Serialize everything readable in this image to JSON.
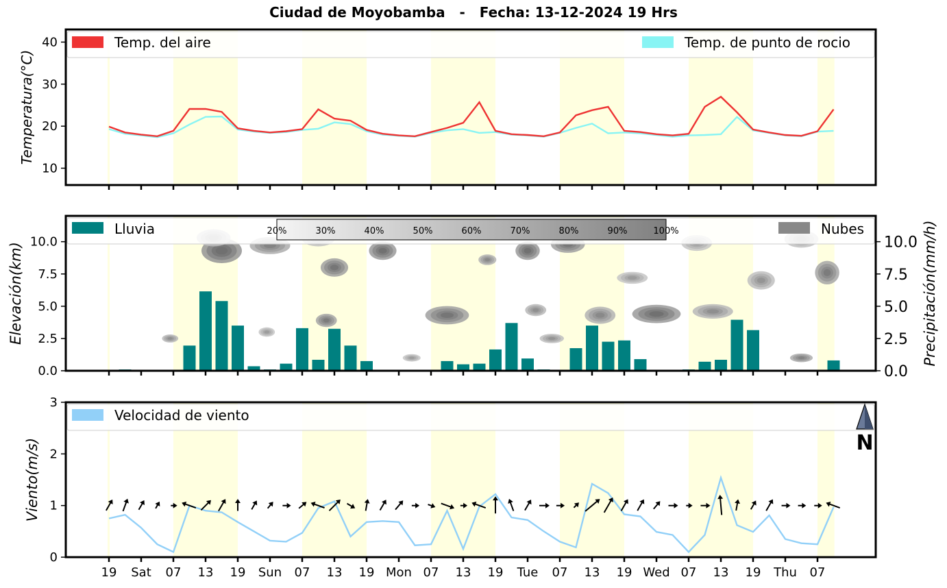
{
  "title": "Ciudad de Moyobamba   -   Fecha: 13-12-2024 19 Hrs",
  "colors": {
    "temp_air": "#ee3333",
    "temp_dew": "#88f4f4",
    "rain": "#008080",
    "clouds": "#888888",
    "wind_speed": "#92d0f8",
    "day_shade": "#ffffe0",
    "arrows": "#000000"
  },
  "x_ticks": [
    "19",
    "Sat",
    "07",
    "13",
    "19",
    "Sun",
    "07",
    "13",
    "19",
    "Mon",
    "07",
    "13",
    "19",
    "Tue",
    "07",
    "13",
    "19",
    "Wed",
    "07",
    "13",
    "19",
    "Thu",
    "07"
  ],
  "chart_data": [
    {
      "type": "line",
      "ylabel": "Temperatura(°C)",
      "ylim": [
        6,
        43
      ],
      "yticks": [
        "10",
        "20",
        "30",
        "40"
      ],
      "ytick_values": [
        10,
        20,
        30,
        40
      ],
      "legend_placement": "top",
      "series": [
        {
          "name": "Temp. del aire",
          "values": [
            19.9,
            18.5,
            18.0,
            17.6,
            18.9,
            24.1,
            24.1,
            23.4,
            19.5,
            18.9,
            18.5,
            18.8,
            19.3,
            24.0,
            21.8,
            21.3,
            19.1,
            18.2,
            17.8,
            17.6,
            18.6,
            19.6,
            20.8,
            25.7,
            18.9,
            18.1,
            17.9,
            17.6,
            18.5,
            22.6,
            23.8,
            24.6,
            18.9,
            18.6,
            18.1,
            17.8,
            18.2,
            24.6,
            27.0,
            23.3,
            19.2,
            18.5,
            17.9,
            17.7,
            18.8,
            24.0
          ]
        },
        {
          "name": "Temp. de punto de rocio",
          "values": [
            19.3,
            18.2,
            17.8,
            17.4,
            18.3,
            20.4,
            22.2,
            22.3,
            19.2,
            18.7,
            18.4,
            18.6,
            19.1,
            19.4,
            20.9,
            20.5,
            18.8,
            18.0,
            17.7,
            17.5,
            18.4,
            19.0,
            19.3,
            18.4,
            18.6,
            18.0,
            17.8,
            17.5,
            18.4,
            19.6,
            20.6,
            18.3,
            18.5,
            18.3,
            17.9,
            17.5,
            17.8,
            17.9,
            18.1,
            22.2,
            19.0,
            18.4,
            17.8,
            17.6,
            18.7,
            18.9
          ]
        }
      ]
    },
    {
      "type": "bar",
      "ylabel": "Elevación(km)",
      "ylabel_right": "Precipitación(mm/h)",
      "ylim": [
        0,
        12
      ],
      "yticks": [
        "0.0",
        "2.5",
        "5.0",
        "7.5",
        "10.0"
      ],
      "ytick_values": [
        0,
        2.5,
        5,
        7.5,
        10
      ],
      "series": [
        {
          "name": "Lluvia",
          "values": [
            0,
            0.1,
            0,
            0,
            0,
            1.95,
            6.15,
            5.4,
            3.5,
            0.35,
            0.1,
            0.55,
            3.3,
            0.85,
            3.25,
            1.95,
            0.75,
            0,
            0,
            0.03,
            0.03,
            0.75,
            0.5,
            0.55,
            1.65,
            3.7,
            0.95,
            0.1,
            0,
            1.75,
            3.5,
            2.25,
            2.35,
            0.9,
            0,
            0.05,
            0.1,
            0.7,
            0.85,
            3.95,
            3.15,
            0,
            0,
            0,
            0,
            0.8
          ]
        },
        {
          "name": "Nubes",
          "values": []
        }
      ],
      "cloud_scale": [
        "20%",
        "30%",
        "40%",
        "50%",
        "60%",
        "70%",
        "80%",
        "90%",
        "100%"
      ],
      "cloud_patches": [
        {
          "x": 7,
          "y": 9.3,
          "w": 2.0,
          "h": 1.5,
          "level": 0.7
        },
        {
          "x": 6.5,
          "y": 10.3,
          "w": 1.6,
          "h": 0.9,
          "level": 0.35
        },
        {
          "x": 10,
          "y": 9.7,
          "w": 2.0,
          "h": 0.9,
          "level": 0.5
        },
        {
          "x": 14,
          "y": 8.0,
          "w": 1.2,
          "h": 1.0,
          "level": 0.6
        },
        {
          "x": 13,
          "y": 10.2,
          "w": 1.5,
          "h": 0.7,
          "level": 0.35
        },
        {
          "x": 17,
          "y": 9.3,
          "w": 1.2,
          "h": 1.0,
          "level": 0.65
        },
        {
          "x": 26,
          "y": 9.3,
          "w": 1.0,
          "h": 1.0,
          "level": 0.65
        },
        {
          "x": 28.5,
          "y": 9.8,
          "w": 1.6,
          "h": 0.9,
          "level": 0.6
        },
        {
          "x": 23.5,
          "y": 8.6,
          "w": 0.6,
          "h": 0.4,
          "level": 0.45
        },
        {
          "x": 21,
          "y": 4.3,
          "w": 2.2,
          "h": 1.0,
          "level": 0.6
        },
        {
          "x": 13.5,
          "y": 3.9,
          "w": 0.8,
          "h": 0.6,
          "level": 0.55
        },
        {
          "x": 26.5,
          "y": 4.7,
          "w": 0.8,
          "h": 0.5,
          "level": 0.4
        },
        {
          "x": 27.5,
          "y": 2.5,
          "w": 1.0,
          "h": 0.3,
          "level": 0.35
        },
        {
          "x": 30.5,
          "y": 4.3,
          "w": 1.4,
          "h": 0.9,
          "level": 0.45
        },
        {
          "x": 34,
          "y": 4.4,
          "w": 2.5,
          "h": 1.0,
          "level": 0.65
        },
        {
          "x": 37.5,
          "y": 4.6,
          "w": 2.0,
          "h": 0.7,
          "level": 0.4
        },
        {
          "x": 32.5,
          "y": 7.2,
          "w": 1.4,
          "h": 0.5,
          "level": 0.3
        },
        {
          "x": 40.5,
          "y": 7.0,
          "w": 1.2,
          "h": 1.0,
          "level": 0.35
        },
        {
          "x": 43,
          "y": 10.2,
          "w": 1.6,
          "h": 0.9,
          "level": 0.35
        },
        {
          "x": 44.6,
          "y": 7.6,
          "w": 1.0,
          "h": 1.4,
          "level": 0.55
        },
        {
          "x": 3.8,
          "y": 2.5,
          "w": 0.5,
          "h": 0.2,
          "level": 0.4
        },
        {
          "x": 9.8,
          "y": 3.0,
          "w": 0.5,
          "h": 0.3,
          "level": 0.3
        },
        {
          "x": 18.8,
          "y": 1.0,
          "w": 0.6,
          "h": 0.15,
          "level": 0.3
        },
        {
          "x": 43,
          "y": 1.0,
          "w": 0.9,
          "h": 0.25,
          "level": 0.5
        },
        {
          "x": 36.5,
          "y": 9.9,
          "w": 1.4,
          "h": 0.8,
          "level": 0.3
        }
      ]
    },
    {
      "type": "line",
      "ylabel": "Viento(m/s)",
      "ylim": [
        0,
        3
      ],
      "yticks": [
        "0",
        "1",
        "2",
        "3"
      ],
      "ytick_values": [
        0,
        1,
        2,
        3
      ],
      "series": [
        {
          "name": "Velocidad de viento",
          "values": [
            0.75,
            0.82,
            0.57,
            0.25,
            0.1,
            1.0,
            0.9,
            0.87,
            0.68,
            0.5,
            0.32,
            0.3,
            0.47,
            0.95,
            1.08,
            0.4,
            0.68,
            0.7,
            0.68,
            0.23,
            0.25,
            0.9,
            0.16,
            0.98,
            1.22,
            0.77,
            0.72,
            0.5,
            0.3,
            0.19,
            1.42,
            1.24,
            0.83,
            0.79,
            0.49,
            0.43,
            0.1,
            0.43,
            1.54,
            0.62,
            0.49,
            0.81,
            0.35,
            0.27,
            0.25,
            0.97
          ]
        }
      ],
      "wind_dir_deg": [
        300,
        290,
        300,
        300,
        0,
        200,
        315,
        300,
        270,
        300,
        310,
        0,
        320,
        200,
        315,
        30,
        280,
        300,
        310,
        0,
        20,
        20,
        0,
        200,
        270,
        250,
        300,
        0,
        0,
        315,
        320,
        300,
        300,
        300,
        310,
        0,
        0,
        0,
        265,
        280,
        300,
        300,
        0,
        0,
        0,
        200
      ]
    }
  ],
  "compass": {
    "label": "N"
  }
}
